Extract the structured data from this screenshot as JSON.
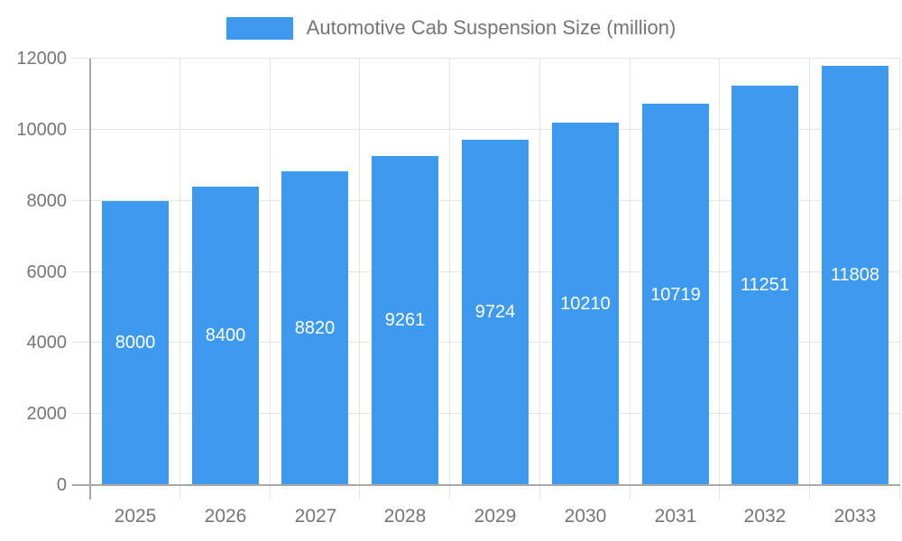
{
  "legend": {
    "label": "Automotive Cab Suspension Size (million)"
  },
  "colors": {
    "bar": "#3E9AEF",
    "grid": "#e4e4e4",
    "axis": "#a8a8a8",
    "text": "#757575",
    "bar_label": "#ffffff",
    "background": "#ffffff"
  },
  "chart_data": {
    "type": "bar",
    "title": "Automotive Cab Suspension Size (million)",
    "categories": [
      "2025",
      "2026",
      "2027",
      "2028",
      "2029",
      "2030",
      "2031",
      "2032",
      "2033"
    ],
    "values": [
      8000,
      8400,
      8820,
      9261,
      9724,
      10210,
      10719,
      11251,
      11808
    ],
    "bar_value_labels": [
      "8000",
      "8400",
      "8820",
      "9261",
      "9724",
      "10210",
      "10719",
      "11251",
      "11808"
    ],
    "xlabel": "",
    "ylabel": "",
    "ylim": [
      0,
      12000
    ],
    "yticks": [
      0,
      2000,
      4000,
      6000,
      8000,
      10000,
      12000
    ],
    "grid": true,
    "legend_position": "top",
    "bar_labels_visible": true
  }
}
